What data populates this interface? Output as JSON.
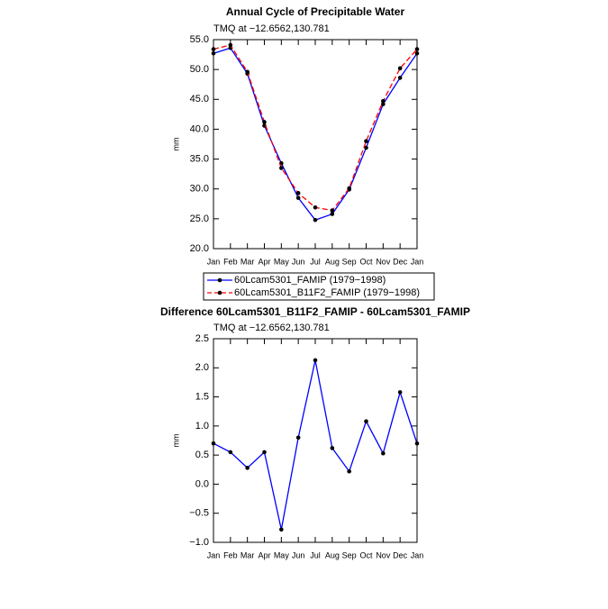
{
  "chart_data": [
    {
      "type": "line",
      "title": "Annual Cycle of Precipitable Water",
      "subtitle": "TMQ at −12.6562,130.781",
      "ylabel": "mm",
      "categories": [
        "Jan",
        "Feb",
        "Mar",
        "Apr",
        "May",
        "Jun",
        "Jul",
        "Aug",
        "Sep",
        "Oct",
        "Nov",
        "Dec",
        "Jan"
      ],
      "series": [
        {
          "name": "60Lcam5301_FAMIP (1979−1998)",
          "color": "#0000ff",
          "line_style": "solid",
          "values": [
            52.7,
            53.6,
            49.3,
            40.6,
            34.3,
            28.5,
            24.8,
            25.8,
            29.9,
            36.9,
            44.2,
            48.6,
            52.7
          ]
        },
        {
          "name": "60Lcam5301_B11F2_FAMIP (1979−1998)",
          "color": "#ff0000",
          "line_style": "dashed",
          "values": [
            53.4,
            54.1,
            49.6,
            41.2,
            33.5,
            29.3,
            26.9,
            26.4,
            30.1,
            38.0,
            44.7,
            50.2,
            53.4
          ]
        }
      ],
      "ylim": [
        20,
        55
      ],
      "yticks": [
        {
          "value": 20,
          "label": "20.0"
        },
        {
          "value": 25,
          "label": "25.0"
        },
        {
          "value": 30,
          "label": "30.0"
        },
        {
          "value": 35,
          "label": "35.0"
        },
        {
          "value": 40,
          "label": "40.0"
        },
        {
          "value": 45,
          "label": "45.0"
        },
        {
          "value": 50,
          "label": "50.0"
        },
        {
          "value": 55,
          "label": "55.0"
        }
      ],
      "legend": "below"
    },
    {
      "type": "line",
      "title": "Difference 60Lcam5301_B11F2_FAMIP - 60Lcam5301_FAMIP",
      "subtitle": "TMQ at −12.6562,130.781",
      "ylabel": "mm",
      "categories": [
        "Jan",
        "Feb",
        "Mar",
        "Apr",
        "May",
        "Jun",
        "Jul",
        "Aug",
        "Sep",
        "Oct",
        "Nov",
        "Dec",
        "Jan"
      ],
      "series": [
        {
          "color": "#0000ff",
          "line_style": "solid",
          "values": [
            0.7,
            0.55,
            0.28,
            0.55,
            -0.78,
            0.8,
            2.13,
            0.62,
            0.22,
            1.08,
            0.53,
            1.58,
            0.7
          ]
        }
      ],
      "ylim": [
        -1,
        2.5
      ],
      "yticks": [
        {
          "value": -1,
          "label": "−1.0"
        },
        {
          "value": -0.5,
          "label": "−0.5"
        },
        {
          "value": 0,
          "label": "0.0"
        },
        0.5,
        {
          "value": 1,
          "label": "1.0"
        },
        1.5,
        {
          "value": 2,
          "label": "2.0"
        },
        2.5
      ]
    }
  ]
}
